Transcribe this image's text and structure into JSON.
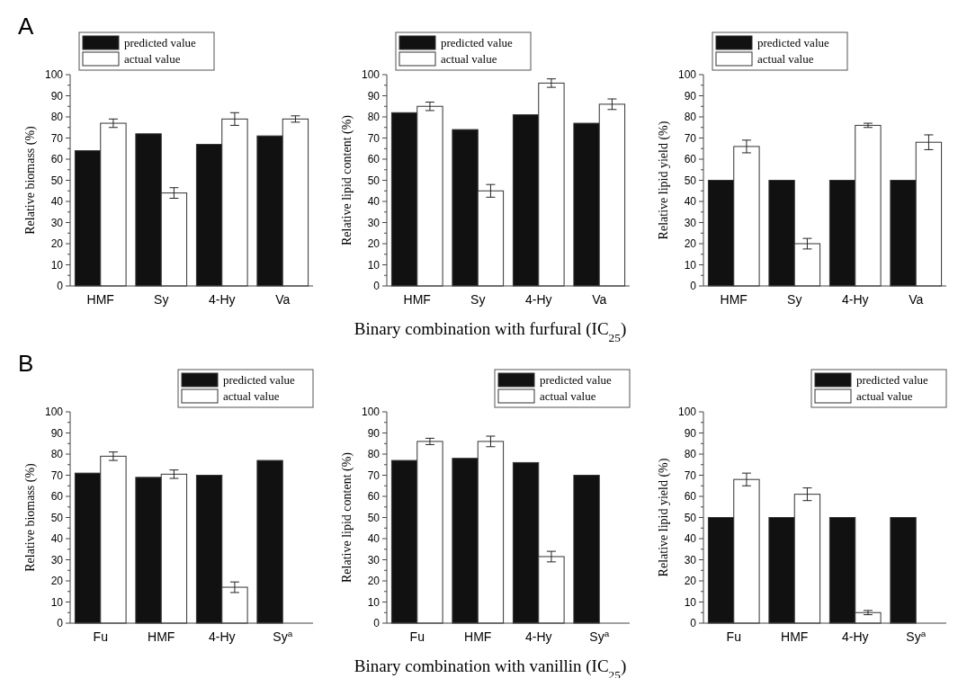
{
  "chart_data": [
    {
      "type": "bar",
      "ylabel": "Relative biomass (%)",
      "annotations": [
        "A"
      ],
      "categories": [
        "HMF",
        "Sy",
        "4-Hy",
        "Va"
      ],
      "ylim": [
        0,
        100
      ],
      "yticks": [
        0,
        10,
        20,
        30,
        40,
        50,
        60,
        70,
        80,
        90,
        100
      ],
      "legend": "top left",
      "series": [
        {
          "name": "predicted value",
          "color": "#111111",
          "values": [
            64,
            72,
            67,
            71
          ]
        },
        {
          "name": "actual value",
          "color": "#ffffff",
          "values": [
            77,
            44,
            79,
            79
          ],
          "errors": [
            2,
            2.5,
            3,
            1.5
          ]
        }
      ]
    },
    {
      "type": "bar",
      "ylabel": "Relative lipid content (%)",
      "xlabel": "Binary combination with furfural (IC$_{25}$)",
      "categories": [
        "HMF",
        "Sy",
        "4-Hy",
        "Va"
      ],
      "ylim": [
        0,
        100
      ],
      "yticks": [
        0,
        10,
        20,
        30,
        40,
        50,
        60,
        70,
        80,
        90,
        100
      ],
      "legend": "top left",
      "series": [
        {
          "name": "predicted value",
          "color": "#111111",
          "values": [
            82,
            74,
            81,
            77
          ]
        },
        {
          "name": "actual value",
          "color": "#ffffff",
          "values": [
            85,
            45,
            96,
            86
          ],
          "errors": [
            2,
            3,
            2,
            2.5
          ]
        }
      ]
    },
    {
      "type": "bar",
      "ylabel": "Relative lipid yield (%)",
      "categories": [
        "HMF",
        "Sy",
        "4-Hy",
        "Va"
      ],
      "ylim": [
        0,
        100
      ],
      "yticks": [
        0,
        10,
        20,
        30,
        40,
        50,
        60,
        70,
        80,
        90,
        100
      ],
      "legend": "top left",
      "series": [
        {
          "name": "predicted value",
          "color": "#111111",
          "values": [
            50,
            50,
            50,
            50
          ]
        },
        {
          "name": "actual value",
          "color": "#ffffff",
          "values": [
            66,
            20,
            76,
            68
          ],
          "errors": [
            3,
            2.5,
            1,
            3.5
          ]
        }
      ]
    },
    {
      "type": "bar",
      "ylabel": "Relative biomass (%)",
      "annotations": [
        "B"
      ],
      "categories": [
        "Fu",
        "HMF",
        "4-Hy",
        "Sy$^{a}$"
      ],
      "ylim": [
        0,
        100
      ],
      "yticks": [
        0,
        10,
        20,
        30,
        40,
        50,
        60,
        70,
        80,
        90,
        100
      ],
      "legend": "top right",
      "series": [
        {
          "name": "predicted value",
          "color": "#111111",
          "values": [
            71,
            69,
            70,
            77
          ]
        },
        {
          "name": "actual value",
          "color": "#ffffff",
          "values": [
            79,
            70.5,
            17,
            null
          ],
          "errors": [
            2,
            2,
            2.5,
            null
          ]
        }
      ]
    },
    {
      "type": "bar",
      "ylabel": "Relative lipid content (%)",
      "xlabel": "Binary combination with vanillin (IC$_{25}$)",
      "categories": [
        "Fu",
        "HMF",
        "4-Hy",
        "Sy$^{a}$"
      ],
      "ylim": [
        0,
        100
      ],
      "yticks": [
        0,
        10,
        20,
        30,
        40,
        50,
        60,
        70,
        80,
        90,
        100
      ],
      "legend": "top right",
      "series": [
        {
          "name": "predicted value",
          "color": "#111111",
          "values": [
            77,
            78,
            76,
            70
          ]
        },
        {
          "name": "actual value",
          "color": "#ffffff",
          "values": [
            86,
            86,
            31.5,
            null
          ],
          "errors": [
            1.5,
            2.5,
            2.5,
            null
          ]
        }
      ]
    },
    {
      "type": "bar",
      "ylabel": "Relative lipid yield (%)",
      "categories": [
        "Fu",
        "HMF",
        "4-Hy",
        "Sy$^{a}$"
      ],
      "ylim": [
        0,
        100
      ],
      "yticks": [
        0,
        10,
        20,
        30,
        40,
        50,
        60,
        70,
        80,
        90,
        100
      ],
      "legend": "top right",
      "series": [
        {
          "name": "predicted value",
          "color": "#111111",
          "values": [
            50,
            50,
            50,
            50
          ]
        },
        {
          "name": "actual value",
          "color": "#ffffff",
          "values": [
            68,
            61,
            5,
            null
          ],
          "errors": [
            3,
            3,
            1,
            null
          ]
        }
      ]
    }
  ]
}
